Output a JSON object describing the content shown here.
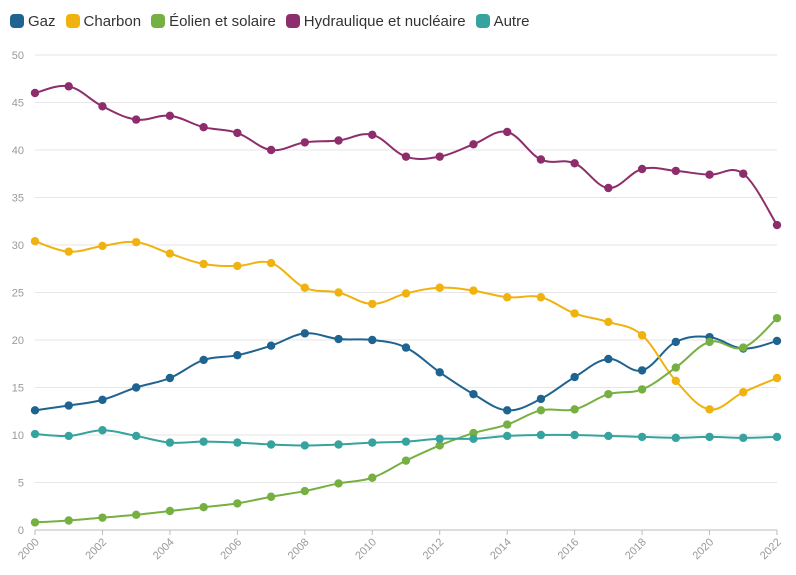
{
  "chart_data": {
    "type": "line",
    "title": "",
    "xlabel": "",
    "ylabel": "",
    "x": [
      2000,
      2001,
      2002,
      2003,
      2004,
      2005,
      2006,
      2007,
      2008,
      2009,
      2010,
      2011,
      2012,
      2013,
      2014,
      2015,
      2016,
      2017,
      2018,
      2019,
      2020,
      2021,
      2022
    ],
    "x_tick_labels": [
      "2000",
      "2002",
      "2004",
      "2006",
      "2008",
      "2010",
      "2012",
      "2014",
      "2016",
      "2018",
      "2020",
      "2022"
    ],
    "y_tick_labels": [
      "0",
      "5",
      "10",
      "15",
      "20",
      "25",
      "30",
      "35",
      "40",
      "45",
      "50"
    ],
    "ylim": [
      0,
      50
    ],
    "grid": true,
    "legend_position": "top-left",
    "series": [
      {
        "name": "Gaz",
        "color": "#1f6391",
        "values": [
          12.6,
          13.1,
          13.7,
          15.0,
          16.0,
          17.9,
          18.4,
          19.4,
          20.7,
          20.1,
          20.0,
          19.2,
          16.6,
          14.3,
          12.6,
          13.8,
          16.1,
          18.0,
          16.8,
          19.8,
          20.3,
          19.1,
          19.9
        ]
      },
      {
        "name": "Charbon",
        "color": "#f0b20f",
        "values": [
          30.4,
          29.3,
          29.9,
          30.3,
          29.1,
          28.0,
          27.8,
          28.1,
          25.5,
          25.0,
          23.8,
          24.9,
          25.5,
          25.2,
          24.5,
          24.5,
          22.8,
          21.9,
          20.5,
          15.7,
          12.7,
          14.5,
          16.0
        ]
      },
      {
        "name": "Éolien et solaire",
        "color": "#76b042",
        "values": [
          0.8,
          1.0,
          1.3,
          1.6,
          2.0,
          2.4,
          2.8,
          3.5,
          4.1,
          4.9,
          5.5,
          7.3,
          8.9,
          10.2,
          11.1,
          12.6,
          12.7,
          14.3,
          14.8,
          17.1,
          19.8,
          19.2,
          22.3
        ]
      },
      {
        "name": "Hydraulique et nucléaire",
        "color": "#8e2d6b",
        "values": [
          46.0,
          46.7,
          44.6,
          43.2,
          43.6,
          42.4,
          41.8,
          40.0,
          40.8,
          41.0,
          41.6,
          39.3,
          39.3,
          40.6,
          41.9,
          39.0,
          38.6,
          36.0,
          38.0,
          37.8,
          37.4,
          37.5,
          32.1
        ]
      },
      {
        "name": "Autre",
        "color": "#36a39e",
        "values": [
          10.1,
          9.9,
          10.5,
          9.9,
          9.2,
          9.3,
          9.2,
          9.0,
          8.9,
          9.0,
          9.2,
          9.3,
          9.6,
          9.6,
          9.9,
          10.0,
          10.0,
          9.9,
          9.8,
          9.7,
          9.8,
          9.7,
          9.8
        ]
      }
    ]
  }
}
